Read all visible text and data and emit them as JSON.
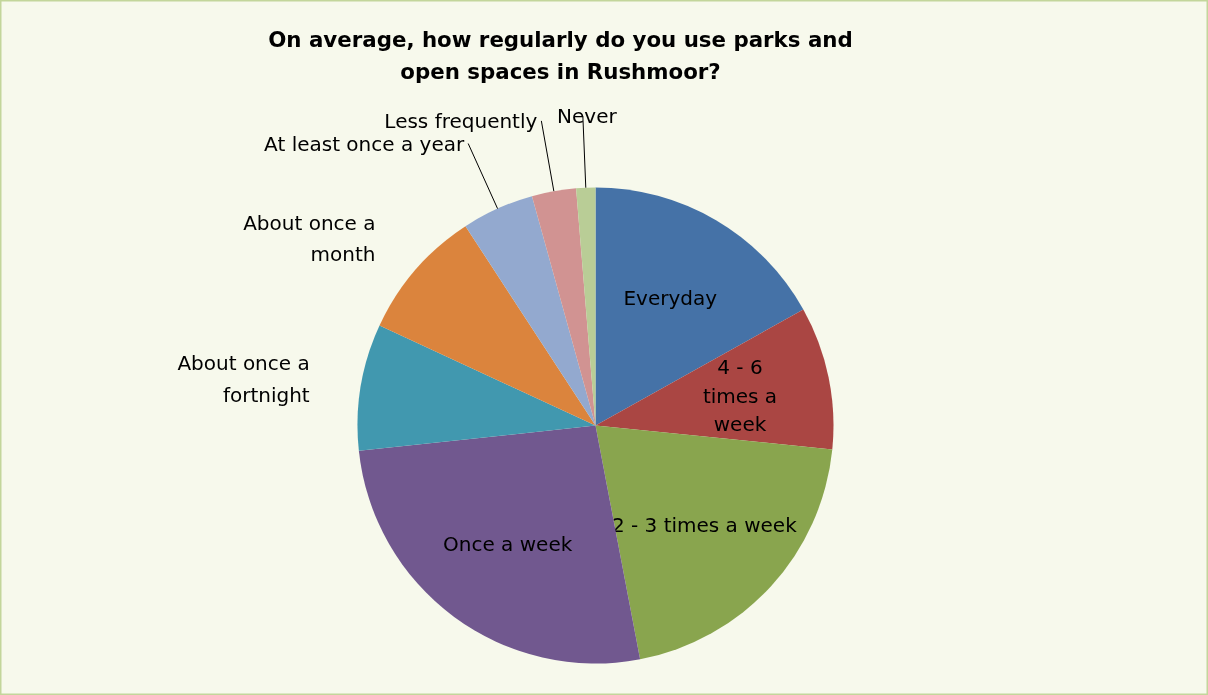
{
  "chart_data": {
    "type": "pie",
    "title": "On average, how regularly do you use parks and open spaces in Rushmoor?",
    "categories": [
      "Everyday",
      "4 - 6 times a week",
      "2 - 3 times a week",
      "Once a week",
      "About once a fortnight",
      "About once a month",
      "At least once a year",
      "Less frequently",
      "Never"
    ],
    "values": [
      16.9,
      9.7,
      20.4,
      26.3,
      8.6,
      8.9,
      4.9,
      3.0,
      1.3
    ],
    "colors": [
      "#4572a7",
      "#aa4643",
      "#89a54e",
      "#71588f",
      "#4198af",
      "#db843d",
      "#93a9cf",
      "#d19392",
      "#b9cd96"
    ]
  }
}
